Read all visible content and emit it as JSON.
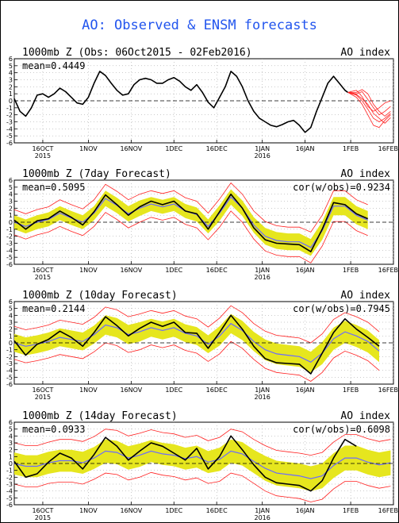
{
  "title": "AO: Observed & ENSM forecasts",
  "colors": {
    "title": "#2255ee",
    "observed": "#000000",
    "ensemble_mean": "#6a6aff",
    "spread_band": "#e6e61e",
    "members": "#ff2020",
    "zero_line": "#000000",
    "grid": "#999999"
  },
  "chart_data": [
    {
      "type": "line",
      "title_left": "1000mb Z (Obs: 06Oct2015 - 02Feb2016)",
      "title_right": "AO index",
      "stat_left": "mean=0.4449",
      "stat_right": "",
      "ylim": [
        -6,
        6
      ],
      "yticks": [
        -6,
        -5,
        -4,
        -3,
        -2,
        -1,
        0,
        1,
        2,
        3,
        4,
        5,
        6
      ],
      "xlim": [
        0,
        133
      ],
      "xticks": [
        {
          "day": 10,
          "label": "16OCT",
          "sub": "2015"
        },
        {
          "day": 26,
          "label": "1NOV",
          "sub": ""
        },
        {
          "day": 41,
          "label": "16NOV",
          "sub": ""
        },
        {
          "day": 56,
          "label": "1DEC",
          "sub": ""
        },
        {
          "day": 71,
          "label": "16DEC",
          "sub": ""
        },
        {
          "day": 87,
          "label": "1JAN",
          "sub": "2016"
        },
        {
          "day": 102,
          "label": "16JAN",
          "sub": ""
        },
        {
          "day": 118,
          "label": "1FEB",
          "sub": ""
        },
        {
          "day": 133,
          "label": "16FEB",
          "sub": ""
        }
      ],
      "grid": true,
      "series": [
        {
          "role": "observed",
          "x": [
            0,
            2,
            4,
            6,
            8,
            10,
            12,
            14,
            16,
            18,
            20,
            22,
            24,
            26,
            28,
            30,
            32,
            34,
            36,
            38,
            40,
            42,
            44,
            46,
            48,
            50,
            52,
            54,
            56,
            58,
            60,
            62,
            64,
            66,
            68,
            70,
            72,
            74,
            76,
            78,
            80,
            82,
            84,
            86,
            88,
            90,
            92,
            94,
            96,
            98,
            100,
            102,
            104,
            106,
            108,
            110,
            112,
            114,
            116,
            117
          ],
          "y": [
            0.3,
            -1.5,
            -2.2,
            -1.0,
            0.8,
            1.0,
            0.5,
            1.0,
            1.8,
            1.3,
            0.5,
            -0.3,
            -0.5,
            0.5,
            2.5,
            4.2,
            3.6,
            2.5,
            1.5,
            0.8,
            1.0,
            2.3,
            3.0,
            3.2,
            3.0,
            2.5,
            2.5,
            3.0,
            3.3,
            2.8,
            2.0,
            1.5,
            2.3,
            1.2,
            -0.2,
            -1.0,
            0.5,
            2.0,
            4.2,
            3.5,
            2.0,
            0.0,
            -1.5,
            -2.5,
            -3.0,
            -3.5,
            -3.7,
            -3.4,
            -3.0,
            -2.8,
            -3.5,
            -4.5,
            -3.8,
            -1.5,
            0.5,
            2.5,
            3.5,
            2.5,
            1.5,
            1.2
          ]
        }
      ],
      "forecast_members": [
        [
          1.2,
          1.0,
          1.3,
          0.2,
          -1.0,
          -2.0,
          -1.5,
          -0.8
        ],
        [
          1.2,
          0.8,
          0.0,
          -1.2,
          -2.5,
          -3.0,
          -2.5,
          -1.8
        ],
        [
          1.2,
          1.5,
          0.6,
          -0.8,
          -1.5,
          -1.0,
          -0.3,
          0.0
        ],
        [
          1.2,
          0.5,
          -0.5,
          -2.0,
          -3.5,
          -3.8,
          -2.8,
          -2.0
        ],
        [
          1.2,
          1.2,
          1.6,
          1.0,
          -0.5,
          -1.5,
          -2.2,
          -1.5
        ],
        [
          1.2,
          0.9,
          0.3,
          -0.5,
          -1.8,
          -2.5,
          -3.2,
          -2.4
        ]
      ],
      "forecast_x": [
        117,
        120,
        122,
        124,
        126,
        128,
        130,
        132
      ]
    },
    {
      "type": "line",
      "title_left": "1000mb Z (7day Forecast)",
      "title_right": "AO index",
      "stat_left": "mean=0.5095",
      "stat_right": "cor(w/obs)=0.9234",
      "ylim": [
        -6,
        6
      ],
      "yticks": [
        -6,
        -5,
        -4,
        -3,
        -2,
        -1,
        0,
        1,
        2,
        3,
        4,
        5,
        6
      ],
      "xlim": [
        0,
        133
      ],
      "xticks": [
        {
          "day": 10,
          "label": "16OCT",
          "sub": "2015"
        },
        {
          "day": 26,
          "label": "1NOV",
          "sub": ""
        },
        {
          "day": 41,
          "label": "16NOV",
          "sub": ""
        },
        {
          "day": 56,
          "label": "1DEC",
          "sub": ""
        },
        {
          "day": 71,
          "label": "16DEC",
          "sub": ""
        },
        {
          "day": 87,
          "label": "1JAN",
          "sub": "2016"
        },
        {
          "day": 102,
          "label": "16JAN",
          "sub": ""
        },
        {
          "day": 118,
          "label": "1FEB",
          "sub": ""
        },
        {
          "day": 133,
          "label": "16FEB",
          "sub": ""
        }
      ],
      "grid": true,
      "x": [
        0,
        4,
        8,
        12,
        16,
        20,
        24,
        28,
        32,
        36,
        40,
        44,
        48,
        52,
        56,
        60,
        64,
        68,
        72,
        76,
        80,
        84,
        88,
        92,
        96,
        100,
        104,
        108,
        112,
        116,
        120,
        124
      ],
      "observed": [
        0.3,
        -1.0,
        0.2,
        0.5,
        1.6,
        0.7,
        -0.4,
        1.5,
        3.9,
        2.5,
        1.0,
        2.2,
        3.0,
        2.5,
        3.0,
        1.6,
        1.2,
        -1.0,
        1.5,
        4.0,
        2.0,
        -0.8,
        -2.5,
        -3.0,
        -3.1,
        -3.2,
        -4.2,
        -1.0,
        2.8,
        2.5,
        1.2,
        0.5
      ],
      "mean": [
        0.0,
        -0.6,
        0.0,
        0.4,
        1.3,
        0.6,
        0.0,
        1.3,
        3.4,
        2.4,
        1.2,
        2.0,
        2.6,
        2.2,
        2.6,
        1.6,
        1.1,
        -0.6,
        1.3,
        3.6,
        2.0,
        -0.4,
        -2.0,
        -2.6,
        -2.8,
        -2.8,
        -3.6,
        -1.2,
        2.3,
        2.3,
        1.0,
        0.3
      ],
      "spread": [
        1.0,
        1.0,
        1.0,
        1.0,
        1.0,
        1.0,
        1.0,
        1.0,
        1.1,
        1.1,
        1.1,
        1.1,
        1.0,
        1.0,
        1.0,
        1.0,
        1.0,
        1.0,
        1.1,
        1.1,
        1.1,
        1.1,
        1.2,
        1.2,
        1.2,
        1.2,
        1.2,
        1.3,
        1.3,
        1.3,
        1.3,
        1.3
      ],
      "envelope": [
        1.8,
        1.8,
        1.8,
        1.8,
        1.9,
        1.9,
        1.9,
        1.9,
        2.0,
        2.0,
        2.0,
        2.0,
        1.9,
        1.9,
        1.9,
        1.9,
        1.9,
        1.9,
        2.0,
        2.0,
        2.0,
        2.0,
        2.1,
        2.1,
        2.1,
        2.1,
        2.2,
        2.2,
        2.2,
        2.2,
        2.2,
        2.2
      ]
    },
    {
      "type": "line",
      "title_left": "1000mb Z (10day Forecast)",
      "title_right": "AO index",
      "stat_left": "mean=0.2144",
      "stat_right": "cor(w/obs)=0.7945",
      "ylim": [
        -6,
        6
      ],
      "yticks": [
        -6,
        -5,
        -4,
        -3,
        -2,
        -1,
        0,
        1,
        2,
        3,
        4,
        5,
        6
      ],
      "xlim": [
        0,
        133
      ],
      "xticks": [
        {
          "day": 10,
          "label": "16OCT",
          "sub": "2015"
        },
        {
          "day": 26,
          "label": "1NOV",
          "sub": ""
        },
        {
          "day": 41,
          "label": "16NOV",
          "sub": ""
        },
        {
          "day": 56,
          "label": "1DEC",
          "sub": ""
        },
        {
          "day": 71,
          "label": "16DEC",
          "sub": ""
        },
        {
          "day": 87,
          "label": "1JAN",
          "sub": "2016"
        },
        {
          "day": 102,
          "label": "16JAN",
          "sub": ""
        },
        {
          "day": 118,
          "label": "1FEB",
          "sub": ""
        },
        {
          "day": 133,
          "label": "16FEB",
          "sub": ""
        }
      ],
      "grid": true,
      "x": [
        0,
        4,
        8,
        12,
        16,
        20,
        24,
        28,
        32,
        36,
        40,
        44,
        48,
        52,
        56,
        60,
        64,
        68,
        72,
        76,
        80,
        84,
        88,
        92,
        96,
        100,
        104,
        108,
        112,
        116,
        120,
        124,
        128
      ],
      "observed": [
        0.3,
        -1.8,
        -0.2,
        0.5,
        1.7,
        0.8,
        -0.5,
        1.5,
        3.8,
        2.5,
        1.0,
        2.1,
        3.0,
        2.4,
        3.0,
        1.5,
        1.4,
        -0.8,
        1.5,
        4.0,
        2.0,
        -0.5,
        -2.3,
        -2.9,
        -3.0,
        -3.1,
        -4.5,
        -1.5,
        1.5,
        3.5,
        2.0,
        0.8,
        -0.5
      ],
      "mean": [
        0.0,
        -0.5,
        -0.2,
        0.2,
        0.8,
        0.5,
        0.2,
        1.2,
        2.6,
        2.2,
        1.2,
        1.6,
        2.2,
        1.8,
        2.2,
        1.4,
        1.0,
        -0.2,
        1.0,
        2.8,
        1.8,
        0.2,
        -1.0,
        -1.6,
        -1.8,
        -2.0,
        -2.8,
        -1.5,
        0.6,
        1.6,
        1.0,
        0.2,
        -1.2
      ],
      "spread": [
        1.3,
        1.3,
        1.3,
        1.3,
        1.3,
        1.3,
        1.3,
        1.3,
        1.4,
        1.4,
        1.4,
        1.4,
        1.3,
        1.3,
        1.3,
        1.3,
        1.3,
        1.3,
        1.4,
        1.4,
        1.4,
        1.4,
        1.5,
        1.5,
        1.5,
        1.5,
        1.5,
        1.6,
        1.6,
        1.6,
        1.6,
        1.6,
        1.6
      ],
      "envelope": [
        2.4,
        2.4,
        2.4,
        2.4,
        2.5,
        2.5,
        2.5,
        2.5,
        2.6,
        2.6,
        2.6,
        2.6,
        2.5,
        2.5,
        2.5,
        2.5,
        2.5,
        2.5,
        2.6,
        2.6,
        2.6,
        2.6,
        2.7,
        2.7,
        2.7,
        2.7,
        2.8,
        2.8,
        2.8,
        2.8,
        2.8,
        2.8,
        2.8
      ]
    },
    {
      "type": "line",
      "title_left": "1000mb Z (14day Forecast)",
      "title_right": "AO index",
      "stat_left": "mean=0.0933",
      "stat_right": "cor(w/obs)=0.6098",
      "ylim": [
        -6,
        6
      ],
      "yticks": [
        -6,
        -5,
        -4,
        -3,
        -2,
        -1,
        0,
        1,
        2,
        3,
        4,
        5,
        6
      ],
      "xlim": [
        0,
        133
      ],
      "xticks": [
        {
          "day": 10,
          "label": "16OCT",
          "sub": "2015"
        },
        {
          "day": 26,
          "label": "1NOV",
          "sub": ""
        },
        {
          "day": 41,
          "label": "16NOV",
          "sub": ""
        },
        {
          "day": 56,
          "label": "1DEC",
          "sub": ""
        },
        {
          "day": 71,
          "label": "16DEC",
          "sub": ""
        },
        {
          "day": 87,
          "label": "1JAN",
          "sub": "2016"
        },
        {
          "day": 102,
          "label": "16JAN",
          "sub": ""
        },
        {
          "day": 118,
          "label": "1FEB",
          "sub": ""
        },
        {
          "day": 133,
          "label": "16FEB",
          "sub": ""
        }
      ],
      "grid": true,
      "x": [
        0,
        4,
        8,
        12,
        16,
        20,
        24,
        28,
        32,
        36,
        40,
        44,
        48,
        52,
        56,
        60,
        64,
        68,
        72,
        76,
        80,
        84,
        88,
        92,
        96,
        100,
        104,
        108,
        112,
        116,
        120,
        124,
        128,
        132
      ],
      "observed": [
        0.3,
        -2.0,
        -1.5,
        0.2,
        1.5,
        0.8,
        -0.8,
        1.3,
        3.8,
        2.5,
        0.5,
        1.8,
        3.0,
        2.5,
        1.5,
        0.5,
        2.2,
        -0.8,
        1.0,
        4.0,
        2.0,
        -0.2,
        -2.0,
        -2.8,
        -3.0,
        -3.2,
        -4.0,
        -2.5,
        0.8,
        3.5,
        2.5,
        null,
        null,
        null
      ],
      "mean": [
        0.0,
        -0.4,
        -0.4,
        0.1,
        0.4,
        0.4,
        0.1,
        0.8,
        1.8,
        1.6,
        0.8,
        1.2,
        1.8,
        1.4,
        1.2,
        0.7,
        1.0,
        0.2,
        0.6,
        1.8,
        1.4,
        0.3,
        -0.7,
        -1.4,
        -1.6,
        -1.8,
        -2.2,
        -1.8,
        -0.3,
        0.8,
        0.8,
        0.2,
        -0.2,
        0.1
      ],
      "spread": [
        1.6,
        1.6,
        1.6,
        1.6,
        1.6,
        1.6,
        1.6,
        1.6,
        1.7,
        1.7,
        1.7,
        1.7,
        1.6,
        1.6,
        1.6,
        1.6,
        1.6,
        1.6,
        1.7,
        1.7,
        1.7,
        1.7,
        1.8,
        1.8,
        1.8,
        1.8,
        1.8,
        1.8,
        1.8,
        1.8,
        1.8,
        1.8,
        1.8,
        1.8
      ],
      "envelope": [
        3.0,
        3.0,
        3.0,
        3.0,
        3.1,
        3.1,
        3.1,
        3.1,
        3.2,
        3.2,
        3.2,
        3.2,
        3.1,
        3.1,
        3.1,
        3.1,
        3.1,
        3.1,
        3.2,
        3.2,
        3.2,
        3.2,
        3.3,
        3.3,
        3.3,
        3.3,
        3.4,
        3.4,
        3.4,
        3.4,
        3.4,
        3.4,
        3.4,
        3.4
      ]
    }
  ]
}
